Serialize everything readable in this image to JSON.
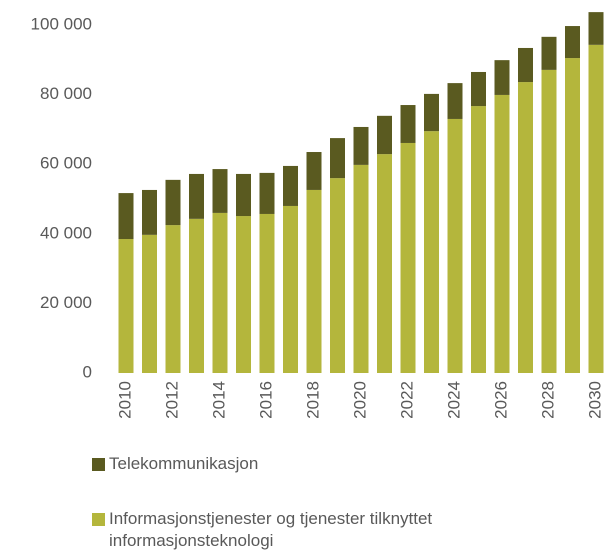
{
  "chart_data": {
    "type": "stacked_bar",
    "categories": [
      "2010",
      null,
      "2012",
      null,
      "2014",
      null,
      "2016",
      null,
      "2018",
      null,
      "2020",
      null,
      "2022",
      null,
      "2024",
      null,
      "2026",
      null,
      "2028",
      null,
      "2030"
    ],
    "series": [
      {
        "name": "Informasjonstjenester og tjenester tilknyttet informasjonsteknologi",
        "color": "#b4b63c",
        "values": [
          38500,
          39700,
          42500,
          44300,
          46000,
          45100,
          45700,
          48000,
          52600,
          56000,
          59800,
          62900,
          66100,
          69500,
          73000,
          76700,
          79900,
          83600,
          87100,
          90500,
          94300
        ]
      },
      {
        "name": "Telekommunikasjon",
        "color": "#5a5a20",
        "values": [
          13200,
          12900,
          13000,
          12900,
          12600,
          12100,
          11800,
          11500,
          10900,
          11500,
          10900,
          11000,
          10900,
          10700,
          10300,
          9800,
          10000,
          9800,
          9500,
          9200,
          9400
        ]
      }
    ],
    "ylim": [
      0,
      100000
    ],
    "yticks": [
      0,
      {
        "value": 20000,
        "label": "20 000"
      },
      {
        "value": 40000,
        "label": "40 000"
      },
      {
        "value": 60000,
        "label": "60 000"
      },
      {
        "value": 80000,
        "label": "80 000"
      },
      {
        "value": 100000,
        "label": "100 000"
      }
    ],
    "grid": false,
    "legend": "bottom"
  }
}
